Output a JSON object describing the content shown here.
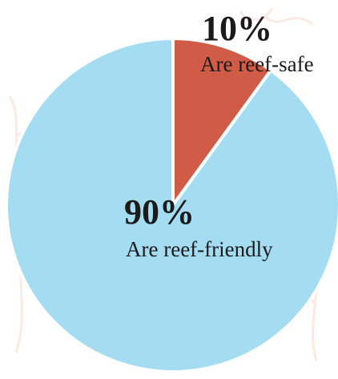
{
  "chart_data": {
    "type": "pie",
    "title": "",
    "start_angle_deg": 0,
    "direction": "clockwise",
    "slices": [
      {
        "value": 10,
        "percent_label": "10%",
        "description": "Are reef-safe",
        "color": "#d05c47"
      },
      {
        "value": 90,
        "percent_label": "90%",
        "description": "Are reef-friendly",
        "color": "#a4dcf2"
      }
    ],
    "separator_color": "#ffffff",
    "background_pattern_color": "#fbe9e4",
    "legend": "none"
  }
}
